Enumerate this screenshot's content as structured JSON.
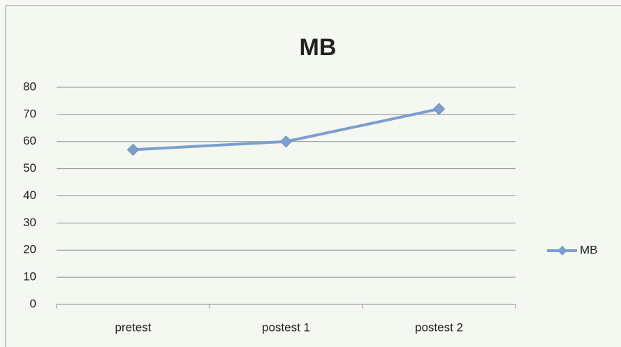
{
  "chart_data": {
    "type": "line",
    "title": "MB",
    "categories": [
      "pretest",
      "postest 1",
      "postest 2"
    ],
    "series": [
      {
        "name": "MB",
        "color": "#7b9fcf",
        "values": [
          57,
          60,
          72
        ]
      }
    ],
    "ylim": [
      0,
      80
    ],
    "yticks": [
      0,
      10,
      20,
      30,
      40,
      50,
      60,
      70,
      80
    ],
    "grid": true,
    "legend": "right"
  }
}
